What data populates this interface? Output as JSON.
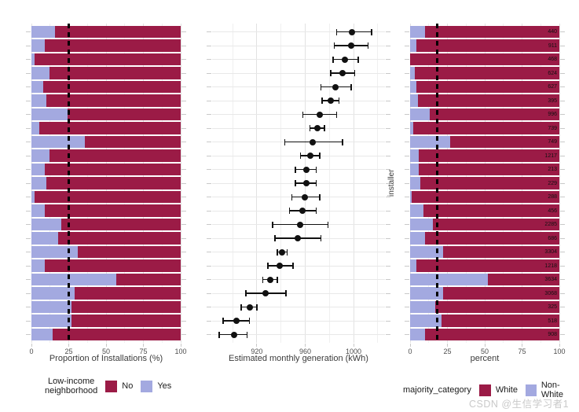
{
  "watermark": "CSDN @生信学习者1",
  "colors": {
    "no_white": "#9B1B46",
    "yes_nonwhite": "#A3A9E0",
    "grid_major": "#e2e2e2",
    "grid_minor": "#f0f0f0",
    "grid_row": "#e8e8e8",
    "tick": "#c9c9c9",
    "axis_text": "#4d4d4d",
    "axis_title": "#3b3b3b",
    "reference_line": "#000000",
    "point": "#111111",
    "background": "#ffffff",
    "watermark": "#c9c9c9"
  },
  "legends": {
    "left": {
      "title": "Low-income\nneighborhood",
      "entries": [
        {
          "label": "No",
          "color": "#9B1B46"
        },
        {
          "label": "Yes",
          "color": "#A3A9E0"
        }
      ]
    },
    "right": {
      "title": "majority_category",
      "entries": [
        {
          "label": "White",
          "color": "#9B1B46"
        },
        {
          "label": "Non-White",
          "color": "#A3A9E0"
        }
      ]
    }
  },
  "chart_data": [
    {
      "type": "bar",
      "orientation": "horizontal",
      "stacked": true,
      "xlabel": "Proportion of Installations (%)",
      "xlim": [
        0,
        100
      ],
      "x_ticks": [
        0,
        25,
        50,
        75,
        100
      ],
      "x_minor": [
        12.5,
        37.5,
        62.5,
        87.5
      ],
      "reference_line_x": 25,
      "grid": true,
      "legend_position": "bottom",
      "categories": [
        "440",
        "911",
        "468",
        "624",
        "627",
        "395",
        "996",
        "739",
        "749",
        "1217",
        "213",
        "229",
        "288",
        "456",
        "2285",
        "686",
        "3304",
        "1218",
        "3634",
        "3068",
        "325",
        "518",
        "908"
      ],
      "series": [
        {
          "name": "Yes",
          "color": "#A3A9E0",
          "values": [
            16,
            9,
            2,
            12,
            8,
            10,
            24,
            5,
            36,
            12,
            9,
            10,
            2,
            9,
            20,
            18,
            31,
            9,
            57,
            29,
            27,
            27,
            14
          ]
        },
        {
          "name": "No",
          "color": "#9B1B46",
          "values": [
            84,
            91,
            98,
            88,
            92,
            90,
            76,
            95,
            64,
            88,
            91,
            90,
            98,
            91,
            80,
            82,
            69,
            91,
            43,
            71,
            73,
            73,
            86
          ]
        }
      ]
    },
    {
      "type": "scatter",
      "xlabel": "Estimated monthly generation (kWh)",
      "xlim": [
        883,
        1026
      ],
      "x_ticks": [
        920,
        960,
        1000
      ],
      "x_minor": [
        900,
        940,
        980,
        1020
      ],
      "grid": true,
      "categories": [
        "440",
        "911",
        "468",
        "624",
        "627",
        "395",
        "996",
        "739",
        "749",
        "1217",
        "213",
        "229",
        "288",
        "456",
        "2285",
        "686",
        "3304",
        "1218",
        "3634",
        "3068",
        "325",
        "518",
        "908"
      ],
      "estimates": [
        999,
        998,
        993,
        991,
        985,
        981,
        972,
        970,
        966,
        964,
        961,
        961,
        960,
        958,
        956,
        954,
        941,
        939,
        931,
        927,
        914,
        903,
        901
      ],
      "ci_low": [
        986,
        984,
        983,
        981,
        973,
        974,
        958,
        964,
        943,
        956,
        952,
        952,
        949,
        947,
        933,
        935,
        937,
        929,
        925,
        911,
        907,
        892,
        889
      ],
      "ci_high": [
        1015,
        1012,
        1004,
        1001,
        998,
        988,
        986,
        976,
        991,
        972,
        969,
        969,
        972,
        969,
        979,
        973,
        945,
        950,
        937,
        944,
        920,
        914,
        912
      ]
    },
    {
      "type": "bar",
      "orientation": "horizontal",
      "stacked": true,
      "xlabel": "percent",
      "ylabel": "installer",
      "xlim": [
        0,
        100
      ],
      "x_ticks": [
        0,
        25,
        50,
        75,
        100
      ],
      "x_minor": [
        12.5,
        37.5,
        62.5,
        87.5
      ],
      "reference_line_x": 18,
      "grid": true,
      "category_labels_inside_bars": true,
      "legend_position": "bottom",
      "categories": [
        "440",
        "911",
        "468",
        "624",
        "627",
        "395",
        "996",
        "739",
        "749",
        "1217",
        "213",
        "229",
        "288",
        "456",
        "2285",
        "686",
        "3304",
        "1218",
        "3634",
        "3068",
        "325",
        "518",
        "908"
      ],
      "series": [
        {
          "name": "Non-White",
          "color": "#A3A9E0",
          "values": [
            10,
            4,
            0,
            3,
            4,
            5,
            13,
            2,
            27,
            6,
            6,
            7,
            1,
            9,
            15,
            10,
            22,
            4,
            52,
            22,
            17,
            21,
            10
          ]
        },
        {
          "name": "White",
          "color": "#9B1B46",
          "values": [
            90,
            96,
            100,
            97,
            96,
            95,
            87,
            98,
            73,
            94,
            94,
            93,
            99,
            91,
            85,
            90,
            78,
            96,
            48,
            78,
            83,
            79,
            90
          ]
        }
      ]
    }
  ]
}
